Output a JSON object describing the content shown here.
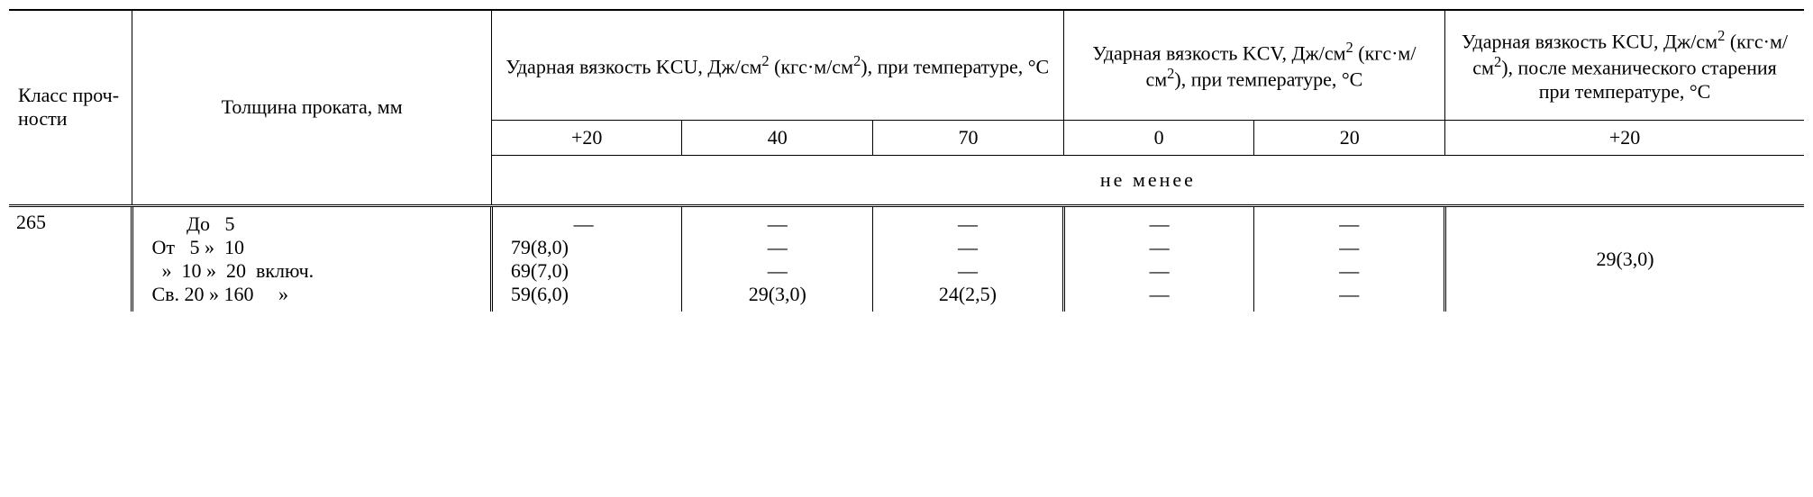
{
  "headers": {
    "col1": "Класс проч-ности",
    "col2": "Толщина проката, мм",
    "group1_html": "Ударная вязкость KCU, Дж/см<sup>2</sup> (кгс·м/см<sup>2</sup>), при температуре, °С",
    "group2_html": "Ударная вязкость KCV, Дж/см<sup>2</sup> (кгс·м/см<sup>2</sup>), при температуре, °С",
    "group3_html": "Ударная вязкость KCU, Дж/см<sup>2</sup> (кгс·м/см<sup>2</sup>), после механического старения при температуре, °С",
    "sub1": "+20",
    "sub2": "40",
    "sub3": "70",
    "sub4": "0",
    "sub5": "20",
    "sub6": "+20",
    "not_less": "не  менее"
  },
  "data": {
    "class": "265",
    "thickness1": "       До   5",
    "thickness2": "От   5 »   10",
    "thickness3": "  »   10 »   20  включ.",
    "thickness4": "Св. 20 » 160     »",
    "r1": {
      "c1": "—",
      "c2": "—",
      "c3": "—",
      "c4": "—",
      "c5": "—"
    },
    "r2": {
      "c1": "79(8,0)",
      "c2": "—",
      "c3": "—",
      "c4": "—",
      "c5": "—"
    },
    "r3": {
      "c1": "69(7,0)",
      "c2": "—",
      "c3": "—",
      "c4": "—",
      "c5": "—"
    },
    "r4": {
      "c1": "59(6,0)",
      "c2": "29(3,0)",
      "c3": "24(2,5)",
      "c4": "—",
      "c5": "—"
    },
    "aging": "29(3,0)"
  }
}
